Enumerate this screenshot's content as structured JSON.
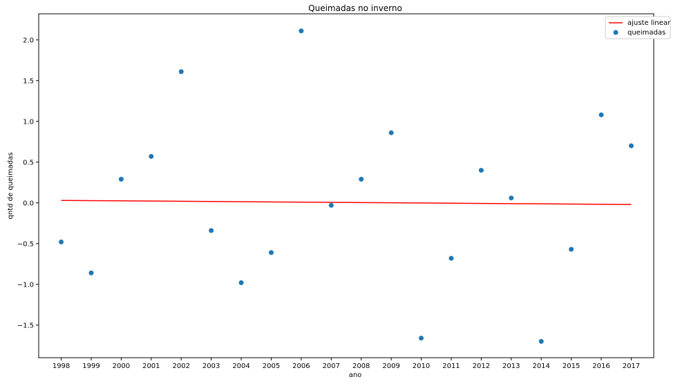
{
  "chart_data": {
    "type": "scatter",
    "title": "Queimadas no inverno",
    "xlabel": "ano",
    "ylabel": "qntd de queimadas",
    "x": [
      1998,
      1999,
      2000,
      2001,
      2002,
      2003,
      2004,
      2005,
      2006,
      2007,
      2008,
      2009,
      2010,
      2011,
      2012,
      2013,
      2014,
      2015,
      2016,
      2017
    ],
    "xticks": [
      "1998",
      "1999",
      "2000",
      "2001",
      "2002",
      "2003",
      "2004",
      "2005",
      "2006",
      "2007",
      "2008",
      "2009",
      "2010",
      "2011",
      "2012",
      "2013",
      "2014",
      "2015",
      "2016",
      "2017"
    ],
    "yticks": [
      -1.5,
      -1.0,
      -0.5,
      0.0,
      0.5,
      1.0,
      1.5,
      2.0
    ],
    "ytick_labels": [
      "−1.5",
      "−1.0",
      "−0.5",
      "0.0",
      "0.5",
      "1.0",
      "1.5",
      "2.0"
    ],
    "xlim": [
      1997.25,
      2017.75
    ],
    "ylim": [
      -1.9,
      2.32
    ],
    "grid": false,
    "legend_position": "top-right",
    "series": [
      {
        "name": "queimadas",
        "kind": "scatter",
        "color": "#1f77b4",
        "y": [
          -0.48,
          -0.86,
          0.29,
          0.57,
          1.61,
          -0.34,
          -0.98,
          -0.61,
          2.11,
          -0.03,
          0.29,
          0.86,
          -1.66,
          -0.68,
          0.4,
          0.06,
          -1.7,
          -0.57,
          1.08,
          0.7
        ]
      },
      {
        "name": "ajuste linear",
        "kind": "line",
        "color": "#ff0000",
        "x": [
          1998,
          2017
        ],
        "y": [
          0.03,
          -0.02
        ]
      }
    ]
  }
}
